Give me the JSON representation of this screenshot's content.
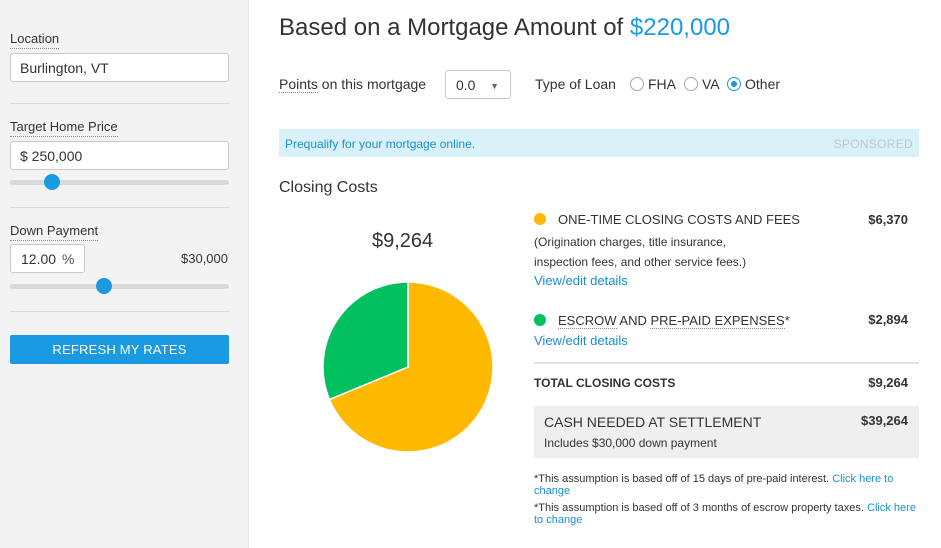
{
  "sidebar": {
    "location": {
      "label": "Location",
      "value": "Burlington, VT"
    },
    "target_price": {
      "label": "Target Home Price",
      "value": "$ 250,000",
      "slider_fraction": 0.19
    },
    "down_payment": {
      "label": "Down Payment",
      "percent_value": "12.00",
      "percent_sign": "%",
      "amount": "$30,000",
      "slider_fraction": 0.43
    },
    "refresh_label": "REFRESH MY RATES",
    "accent_color": "#1a9ae0"
  },
  "header": {
    "title_prefix": "Based on a Mortgage Amount of",
    "title_amount": "$220,000"
  },
  "options": {
    "points_label_link": "Points",
    "points_label_rest": " on this mortgage",
    "points_value": "0.0",
    "loan_type_label": "Type of Loan",
    "loan_types": [
      {
        "label": "FHA",
        "checked": false
      },
      {
        "label": "VA",
        "checked": false
      },
      {
        "label": "Other",
        "checked": true
      }
    ]
  },
  "sponsor": {
    "link_text": "Prequalify for your mortgage online.",
    "tag": "SPONSORED"
  },
  "closing": {
    "section_title": "Closing Costs",
    "total_display": "$9,264",
    "one_time": {
      "title": "ONE-TIME CLOSING COSTS AND FEES",
      "value": "$6,370",
      "desc_line1": "(Origination charges, title insurance,",
      "desc_line2": "inspection fees, and other service fees.)",
      "link": "View/edit details",
      "color": "#ffb900"
    },
    "escrow": {
      "title_part1": "ESCROW",
      "title_part2": "AND",
      "title_part3": "PRE-PAID EXPENSES",
      "asterisk": "*",
      "value": "$2,894",
      "link": "View/edit details",
      "color": "#00c060"
    },
    "total_label": "TOTAL CLOSING COSTS",
    "total_value": "$9,264",
    "cash_label": "CASH NEEDED AT SETTLEMENT",
    "cash_sub": "Includes $30,000 down payment",
    "cash_value": "$39,264",
    "note1_text": "*This assumption is based off of 15 days of pre-paid interest.",
    "note1_link": "Click here to change",
    "note2_text": "*This assumption is based off of 3 months of escrow property taxes.",
    "note2_link": "Click here to change"
  },
  "chart_data": {
    "type": "pie",
    "slices": [
      {
        "label": "ONE-TIME CLOSING COSTS AND FEES",
        "value": 6370,
        "color": "#ffb900"
      },
      {
        "label": "ESCROW AND PRE-PAID EXPENSES",
        "value": 2894,
        "color": "#00c060"
      }
    ]
  }
}
